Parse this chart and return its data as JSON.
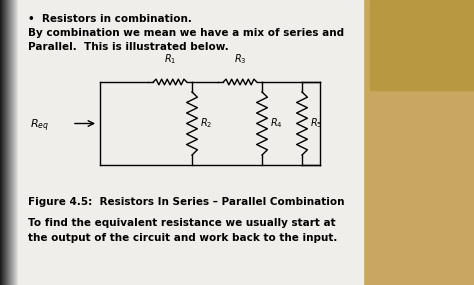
{
  "bg_left_color": "#2a2a2a",
  "bg_mid_color": "#c8b98a",
  "bg_right_color": "#c8a860",
  "paper_color": "#f0eeeb",
  "paper_shadow": "#c0bdb8",
  "title_lines": [
    "•  Resistors in combination.",
    "By combination we mean we have a mix of series and",
    "Parallel.  This is illustrated below."
  ],
  "caption": "Figure 4.5:  Resistors In Series – Parallel Combination",
  "bottom_text_1": "To find the equivalent resistance we usually start at",
  "bottom_text_2": "the output of the circuit and work back to the input.",
  "lw": 1.0
}
